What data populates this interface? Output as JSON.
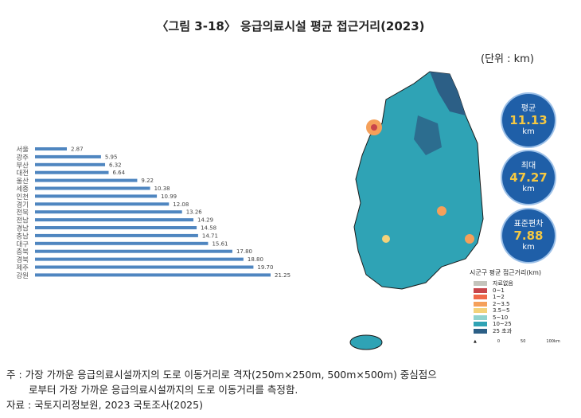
{
  "title": "〈그림 3-18〉 응급의료시설 평균 접근거리(2023)",
  "unit": "(단위 : km)",
  "chart_data": {
    "type": "bar",
    "orientation": "horizontal",
    "categories": [
      "서울",
      "광주",
      "부산",
      "대전",
      "울산",
      "세종",
      "인천",
      "경기",
      "전북",
      "전남",
      "경남",
      "충남",
      "대구",
      "충북",
      "경북",
      "제주",
      "강원"
    ],
    "values": [
      2.87,
      5.95,
      6.32,
      6.64,
      9.22,
      10.38,
      10.99,
      12.08,
      13.26,
      14.29,
      14.58,
      14.71,
      15.61,
      17.8,
      18.8,
      19.7,
      21.25
    ],
    "value_labels": [
      "2.87",
      "5.95",
      "6.32",
      "6.64",
      "9.22",
      "10.38",
      "10.99",
      "12.08",
      "13.26",
      "14.29",
      "14.58",
      "14.71",
      "15.61",
      "17.80",
      "18.80",
      "19.70",
      "21.25"
    ],
    "color": "#4f86c0",
    "xlim": [
      0,
      22
    ],
    "grid": false
  },
  "stats": [
    {
      "label": "평균",
      "value": "11.13",
      "unit": "km"
    },
    {
      "label": "최대",
      "value": "47.27",
      "unit": "km"
    },
    {
      "label": "표준편차",
      "value": "7.88",
      "unit": "km"
    }
  ],
  "legend": {
    "title": "시군구 평균 접근거리(km)",
    "items": [
      {
        "label": "자료없음",
        "color": "#c4c4bc"
      },
      {
        "label": "0~1",
        "color": "#c8454a"
      },
      {
        "label": "1~2",
        "color": "#f06a4a"
      },
      {
        "label": "2~3.5",
        "color": "#f5a05a"
      },
      {
        "label": "3.5~5",
        "color": "#f3d27a"
      },
      {
        "label": "5~10",
        "color": "#8fd3cf"
      },
      {
        "label": "10~25",
        "color": "#2fa3b5"
      },
      {
        "label": "25 초과",
        "color": "#2c5f86"
      }
    ],
    "scale_labels": [
      "0",
      "50",
      "100km"
    ]
  },
  "notes": {
    "line1": "주 : 가장 가까운 응급의료시설까지의 도로 이동거리로 격자(250m×250m, 500m×500m) 중심점으",
    "line2": "로부터 가장 가까운 응급의료시설까지의 도로 이동거리를 측정함.",
    "source": "자료 : 국토지리정보원, 2023 국토조사(2025)"
  }
}
